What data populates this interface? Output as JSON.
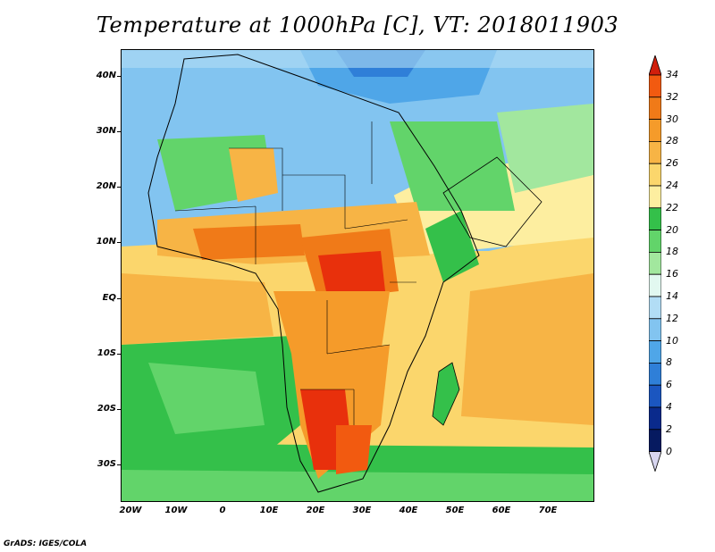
{
  "title": "Temperature at 1000hPa [C], VT: 2018011903",
  "footer": "GrADS: IGES/COLA",
  "lat_labels": [
    "40N",
    "30N",
    "20N",
    "10N",
    "EQ",
    "10S",
    "20S",
    "30S"
  ],
  "lon_labels": [
    "20W",
    "10W",
    "0",
    "10E",
    "20E",
    "30E",
    "40E",
    "50E",
    "60E",
    "70E"
  ],
  "colorbar": {
    "labels": [
      "34",
      "32",
      "30",
      "28",
      "26",
      "24",
      "22",
      "20",
      "18",
      "16",
      "14",
      "12",
      "10",
      "8",
      "6",
      "4",
      "2",
      "0"
    ],
    "colors": [
      "#e8300c",
      "#f25a10",
      "#f07a18",
      "#f59b2a",
      "#f7b445",
      "#fbd66c",
      "#fdeea0",
      "#34c04a",
      "#62d46a",
      "#a2e79e",
      "#e2f8f0",
      "#b2ddf5",
      "#82c4f0",
      "#4fa6e8",
      "#2f7fd8",
      "#1b56c0",
      "#0a2a8c",
      "#061a60"
    ],
    "top_arrow": "#d11f0c",
    "bottom_arrow": "#d8d6f0"
  }
}
